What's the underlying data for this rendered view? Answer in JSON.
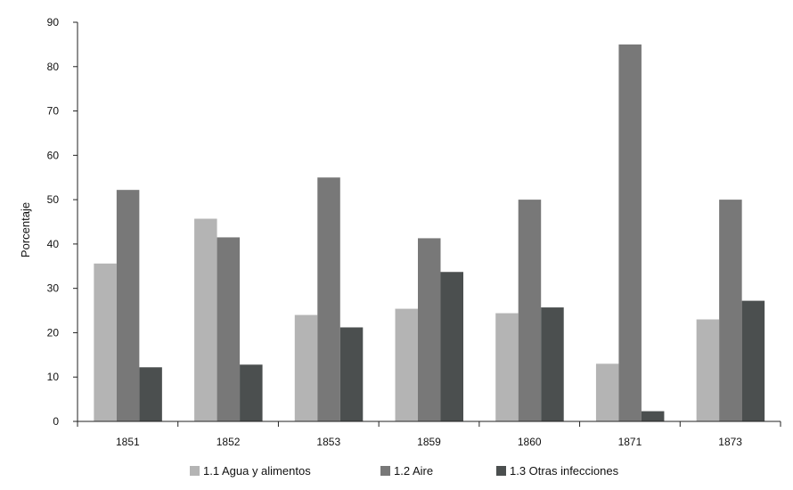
{
  "chart_data": {
    "type": "bar",
    "title": "",
    "xlabel": "",
    "ylabel": "Porcentaje",
    "ylim": [
      0,
      90
    ],
    "yticks": [
      0,
      10,
      20,
      30,
      40,
      50,
      60,
      70,
      80,
      90
    ],
    "grid": false,
    "legend_position": "bottom",
    "categories": [
      "1851",
      "1852",
      "1853",
      "1859",
      "1860",
      "1871",
      "1873"
    ],
    "series": [
      {
        "name": "1.1 Agua y alimentos",
        "color": "#b4b4b4",
        "values": [
          35.6,
          45.7,
          24,
          25.4,
          24.4,
          13,
          23
        ]
      },
      {
        "name": "1.2 Aire",
        "color": "#787878",
        "values": [
          52.2,
          41.5,
          55,
          41.3,
          50,
          85,
          50
        ]
      },
      {
        "name": "1.3 Otras infecciones",
        "color": "#4b4f4f",
        "values": [
          12.2,
          12.8,
          21.2,
          33.7,
          25.7,
          2.3,
          27.2
        ]
      }
    ]
  }
}
